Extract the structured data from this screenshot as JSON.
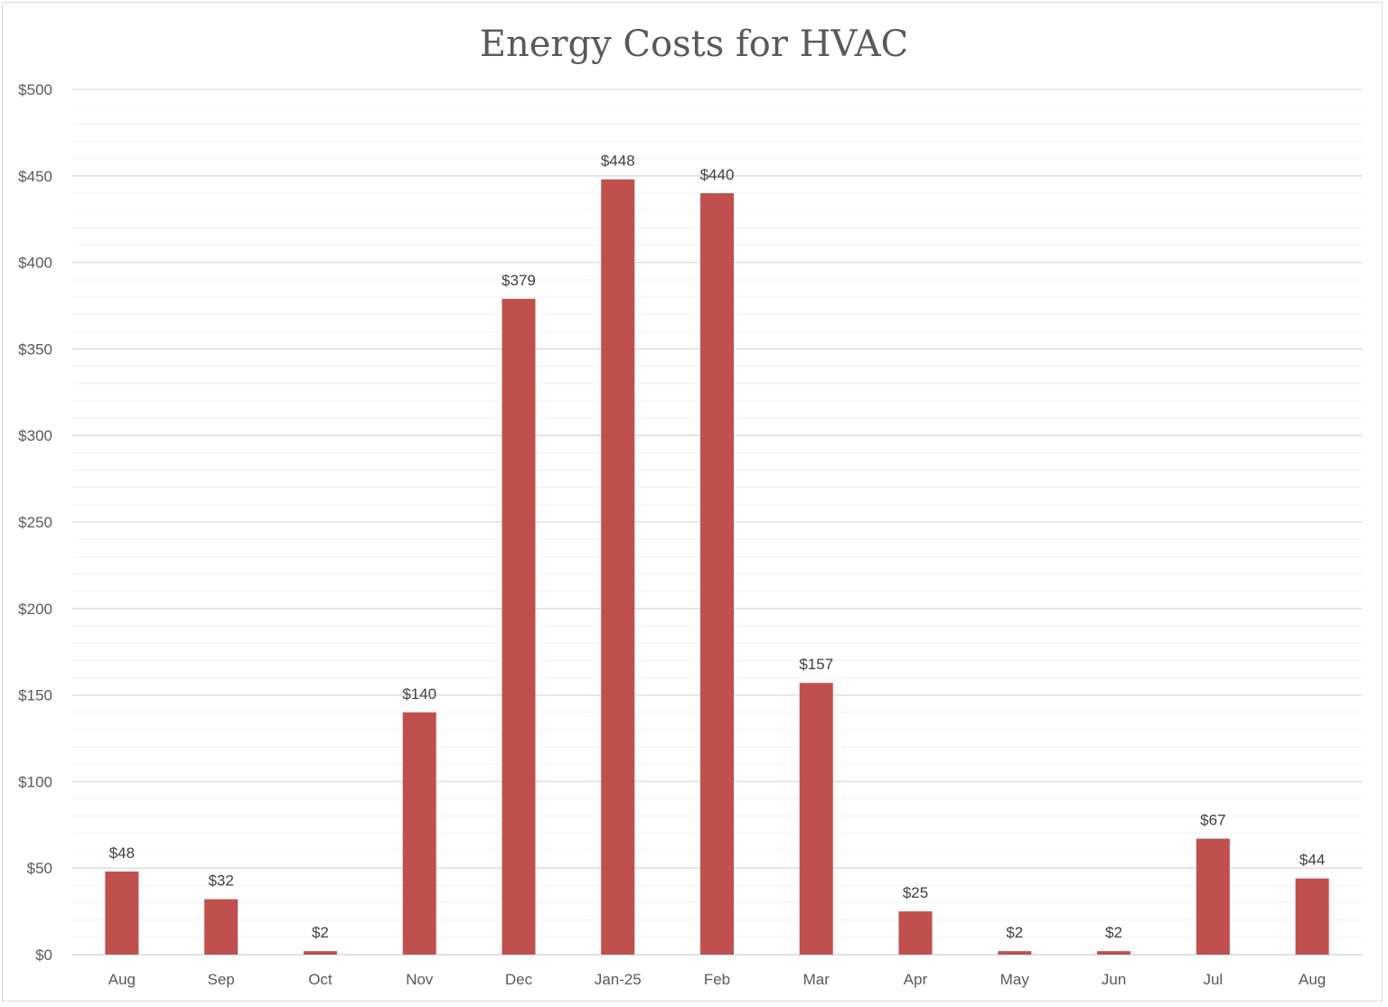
{
  "chart_data": {
    "type": "bar",
    "title": "Energy Costs for HVAC",
    "xlabel": "",
    "ylabel": "",
    "categories": [
      "Aug",
      "Sep",
      "Oct",
      "Nov",
      "Dec",
      "Jan-25",
      "Feb",
      "Mar",
      "Apr",
      "May",
      "Jun",
      "Jul",
      "Aug"
    ],
    "values": [
      48,
      32,
      2,
      140,
      379,
      448,
      440,
      157,
      25,
      2,
      2,
      67,
      44
    ],
    "data_labels": [
      "$48",
      "$32",
      "$2",
      "$140",
      "$379",
      "$448",
      "$440",
      "$157",
      "$25",
      "$2",
      "$2",
      "$67",
      "$44"
    ],
    "ylim": [
      0,
      500
    ],
    "yticks": [
      0,
      50,
      100,
      150,
      200,
      250,
      300,
      350,
      400,
      450,
      500
    ],
    "ytick_labels": [
      "$0",
      "$50",
      "$100",
      "$150",
      "$200",
      "$250",
      "$300",
      "$350",
      "$400",
      "$450",
      "$500"
    ],
    "minor_grid_step": 10,
    "grid": true,
    "legend": "none",
    "bar_color": "#c0504d"
  }
}
